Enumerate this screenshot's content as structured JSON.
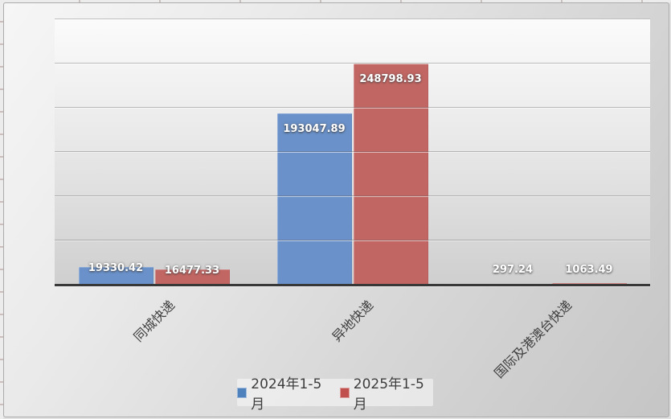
{
  "chart_data": {
    "type": "bar",
    "title": "",
    "categories": [
      "同城快递",
      "异地快递",
      "国际及港澳台快递"
    ],
    "series": [
      {
        "name": "2024年1-5月",
        "color": "#4F81BD",
        "bar_color": "#6A91C9",
        "values": [
          19330.42,
          193047.89,
          297.24
        ]
      },
      {
        "name": "2025年1-5月",
        "color": "#C0504D",
        "bar_color": "#C26663",
        "values": [
          16477.33,
          248798.93,
          1063.49
        ]
      }
    ],
    "data_label_values": [
      [
        "19330.42",
        "193047.89",
        "297.24"
      ],
      [
        "16477.33",
        "248798.93",
        "1063.49"
      ]
    ],
    "ylim": [
      0,
      300000
    ],
    "y_major_unit": 50000,
    "y_axis_labels_visible": false,
    "grid": "horizontal",
    "legend_position": "bottom-center",
    "data_labels": "on",
    "data_label_color": "#FFFFFF",
    "category_label_rotation_deg": 45,
    "background_style": "gray-gradient"
  }
}
